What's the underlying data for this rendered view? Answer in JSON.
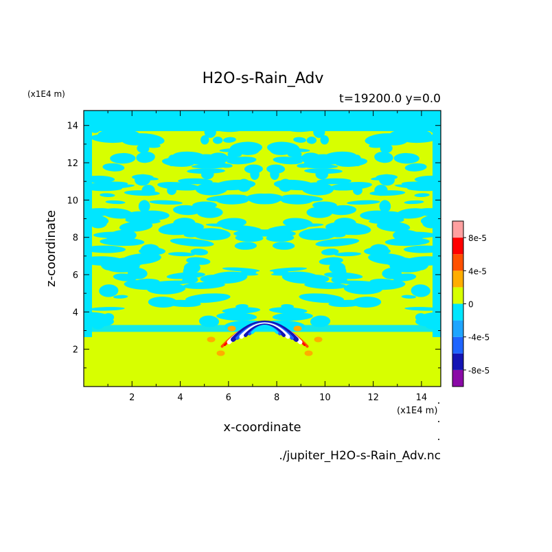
{
  "chart_data": {
    "type": "heatmap",
    "title": "H2O-s-Rain_Adv",
    "subtitle": "t=19200.0 y=0.0",
    "xlabel": "x-coordinate",
    "ylabel": "z-coordinate",
    "x_unit": "(x1E4 m)",
    "y_unit": "(x1E4 m)",
    "source_file": "./jupiter_H2O-s-Rain_Adv.nc",
    "xlim": [
      0,
      14.8
    ],
    "ylim": [
      0,
      14.8
    ],
    "x_ticks": [
      2,
      4,
      6,
      8,
      10,
      12,
      14
    ],
    "y_ticks": [
      2,
      4,
      6,
      8,
      10,
      12,
      14
    ],
    "colorbar": {
      "levels": [
        -0.0001,
        -8e-05,
        -6e-05,
        -4e-05,
        -2e-05,
        0,
        2e-05,
        4e-05,
        6e-05,
        8e-05,
        0.0001
      ],
      "colors": [
        "#8a0aa6",
        "#1414b4",
        "#1e64ff",
        "#1ea5ff",
        "#00e6ff",
        "#d7ff00",
        "#ffad00",
        "#ff5000",
        "#ff0000",
        "#ffa0a0"
      ],
      "tick_labels": [
        "8e-5",
        "4e-5",
        "0",
        "-4e-5",
        "-8e-5"
      ],
      "tick_values": [
        8e-05,
        4e-05,
        0,
        -4e-05,
        -8e-05
      ]
    },
    "background_color": "#d7ff00",
    "negative_small_color": "#00e6ff",
    "features": {
      "rain_arc_center_x": 7.5,
      "rain_arc_center_z": 3.7
    }
  }
}
